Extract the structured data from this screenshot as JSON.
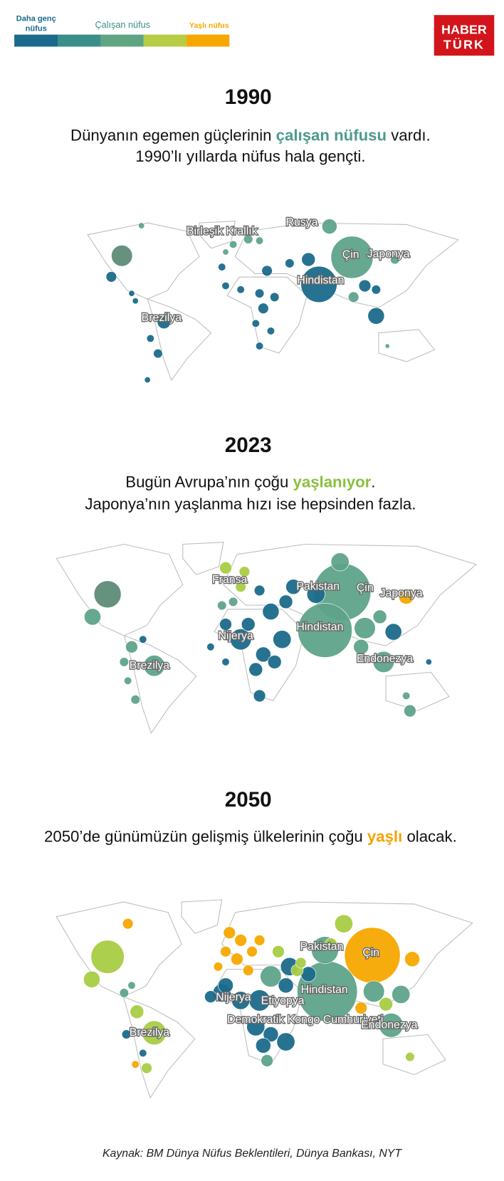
{
  "legend": {
    "young": [
      "Daha genç",
      "nüfus"
    ],
    "working": "Çalışan nüfus",
    "old": "Yaşlı nüfus"
  },
  "logo": {
    "line1": "HABER",
    "line2": "TÜRK"
  },
  "sections": [
    {
      "year": "1990",
      "text": [
        [
          "Dünyanın egemen güçlerinin ",
          "çalışan nüfusu",
          " vardı."
        ],
        [
          "1990’lı yıllarda nüfus hala gençti."
        ]
      ],
      "map_labels": [
        "Birleşik Krallık",
        "Rusya",
        "Çin",
        "Japonya",
        "Hindistan",
        "Brezilya"
      ]
    },
    {
      "year": "2023",
      "text": [
        [
          "Bugün Avrupa’nın çoğu ",
          "yaşlanıyor",
          "."
        ],
        [
          "Japonya’nın yaşlanma hızı ise hepsinden fazla."
        ]
      ],
      "map_labels": [
        "Fransa",
        "Pakistan",
        "Çin",
        "Japonya",
        "Hindistan",
        "Nijerya",
        "Brezilya",
        "Endonezya"
      ]
    },
    {
      "year": "2050",
      "text": [
        [
          "2050’de günümüzün gelişmiş ülkelerinin çoğu ",
          "yaşlı",
          " olacak."
        ]
      ],
      "map_labels": [
        "Pakistan",
        "Çin",
        "Hindistan",
        "Nijerya",
        "Etiyopya",
        "Demokratik Kongo Cumhuriyeti",
        "Endonezya",
        "Brezilya"
      ]
    }
  ],
  "source": "Kaynak: BM Dünya Nüfus Beklentileri, Dünya Bankası, NYT"
}
